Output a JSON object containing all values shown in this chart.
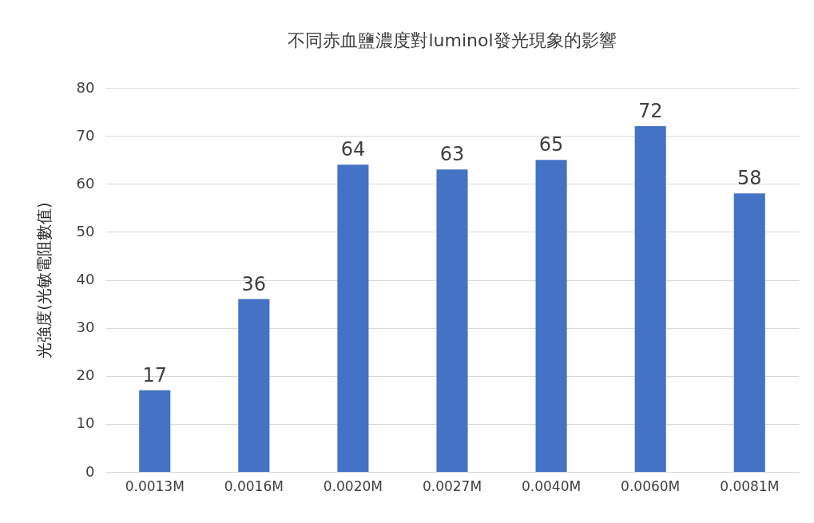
{
  "chart_data": {
    "type": "bar",
    "title": "不同赤血鹽濃度對luminol發光現象的影響",
    "ylabel": "光強度(光敏電阻數值)",
    "categories": [
      "0.0013M",
      "0.0016M",
      "0.0020M",
      "0.0027M",
      "0.0040M",
      "0.0060M",
      "0.0081M"
    ],
    "values": [
      17,
      36,
      64,
      63,
      65,
      72,
      58
    ],
    "color": "#4472c4",
    "ylim": [
      0,
      80
    ],
    "yticks": [
      0,
      10,
      20,
      30,
      40,
      50,
      60,
      70,
      80
    ],
    "grid": "y",
    "data_labels": true
  }
}
